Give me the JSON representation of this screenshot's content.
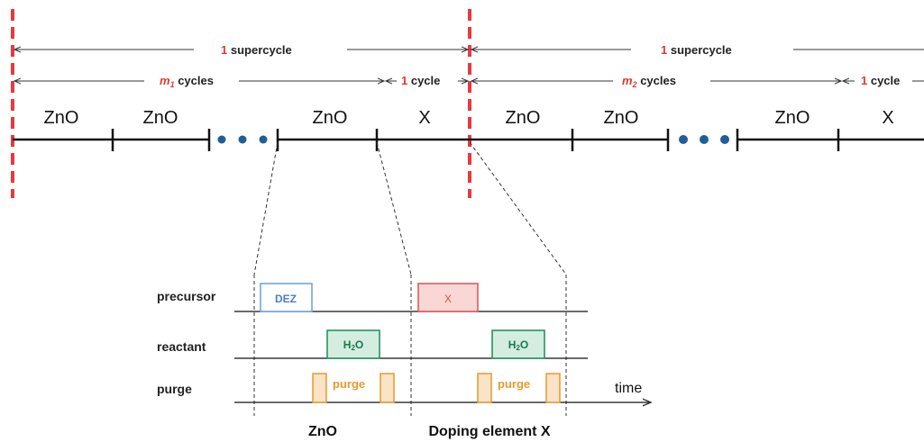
{
  "timeline": {
    "supercycle_label_num": "1",
    "supercycle_label_text": " supercycle",
    "m1": "m",
    "m1_sub": "1",
    "m2": "m",
    "m2_sub": "2",
    "cycles_text": " cycles",
    "cycle_num": "1",
    "cycle_text": " cycle",
    "segment_zno": "ZnO",
    "segment_x": "X"
  },
  "pulse_diagram": {
    "row_labels": [
      "precursor",
      "reactant",
      "purge"
    ],
    "dez_label": "DEZ",
    "x_label": "X",
    "h2o_main": "H",
    "h2o_sub": "2",
    "h2o_end": "O",
    "purge_label": "purge",
    "time_label": "time",
    "zno_caption": "ZnO",
    "doping_caption": "Doping element X"
  },
  "colors": {
    "boundary": "#e8393f",
    "accent_num": "#e03a2f",
    "timeline": "#111111",
    "dots": "#1f5e99",
    "dez_border": "#6aa0d6",
    "dez_text": "#4a7fbf",
    "x_border": "#d9534f",
    "x_fill": "#f8d7d5",
    "x_text": "#d9534f",
    "h2o_border": "#1a8c5a",
    "h2o_fill": "#d4ede0",
    "h2o_text": "#157a4c",
    "purge_border": "#e79a2e",
    "purge_fill": "#fbe3c7",
    "purge_text": "#e79a2e"
  }
}
